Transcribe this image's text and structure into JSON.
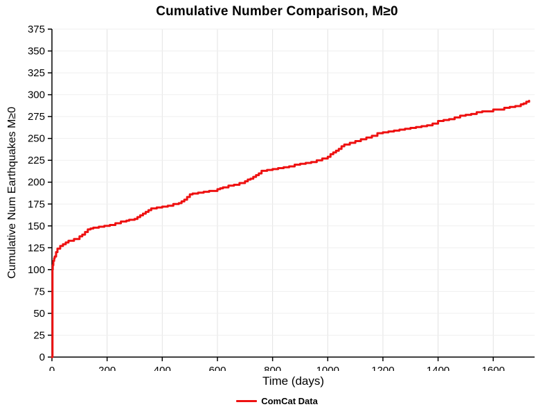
{
  "chart_data": {
    "type": "line",
    "title": "Cumulative Number Comparison, M≥0",
    "xlabel": "Time (days)",
    "ylabel": "Cumulative Num Earthquakes M≥0",
    "xlim": [
      0,
      1750
    ],
    "ylim": [
      0,
      375
    ],
    "xticks": [
      0,
      200,
      400,
      600,
      800,
      1000,
      1200,
      1400,
      1600
    ],
    "yticks": [
      0,
      25,
      50,
      75,
      100,
      125,
      150,
      175,
      200,
      225,
      250,
      275,
      300,
      325,
      350,
      375
    ],
    "grid": true,
    "legend_position": "bottom-center",
    "series": [
      {
        "name": "ComCat Data",
        "color": "#ee1111",
        "interpolation": "step",
        "points": [
          [
            0,
            0
          ],
          [
            2,
            100
          ],
          [
            3,
            105
          ],
          [
            5,
            110
          ],
          [
            8,
            113
          ],
          [
            10,
            115
          ],
          [
            15,
            120
          ],
          [
            20,
            124
          ],
          [
            30,
            127
          ],
          [
            40,
            129
          ],
          [
            50,
            131
          ],
          [
            60,
            133
          ],
          [
            80,
            135
          ],
          [
            100,
            138
          ],
          [
            110,
            140
          ],
          [
            120,
            143
          ],
          [
            130,
            146
          ],
          [
            140,
            147
          ],
          [
            150,
            148
          ],
          [
            170,
            149
          ],
          [
            190,
            150
          ],
          [
            210,
            151
          ],
          [
            230,
            153
          ],
          [
            250,
            155
          ],
          [
            270,
            156
          ],
          [
            280,
            157
          ],
          [
            300,
            158
          ],
          [
            310,
            160
          ],
          [
            320,
            162
          ],
          [
            330,
            164
          ],
          [
            340,
            166
          ],
          [
            350,
            168
          ],
          [
            360,
            170
          ],
          [
            380,
            171
          ],
          [
            400,
            172
          ],
          [
            420,
            173
          ],
          [
            440,
            175
          ],
          [
            460,
            176
          ],
          [
            470,
            178
          ],
          [
            480,
            180
          ],
          [
            490,
            183
          ],
          [
            500,
            186
          ],
          [
            510,
            187
          ],
          [
            530,
            188
          ],
          [
            550,
            189
          ],
          [
            570,
            190
          ],
          [
            590,
            190
          ],
          [
            600,
            192
          ],
          [
            610,
            193
          ],
          [
            620,
            194
          ],
          [
            640,
            196
          ],
          [
            660,
            197
          ],
          [
            680,
            199
          ],
          [
            700,
            201
          ],
          [
            710,
            203
          ],
          [
            720,
            204
          ],
          [
            730,
            206
          ],
          [
            740,
            208
          ],
          [
            750,
            210
          ],
          [
            760,
            213
          ],
          [
            780,
            214
          ],
          [
            800,
            215
          ],
          [
            820,
            216
          ],
          [
            840,
            217
          ],
          [
            860,
            218
          ],
          [
            880,
            220
          ],
          [
            900,
            221
          ],
          [
            920,
            222
          ],
          [
            940,
            223
          ],
          [
            960,
            225
          ],
          [
            980,
            227
          ],
          [
            1000,
            229
          ],
          [
            1010,
            232
          ],
          [
            1020,
            234
          ],
          [
            1030,
            236
          ],
          [
            1040,
            238
          ],
          [
            1050,
            241
          ],
          [
            1060,
            243
          ],
          [
            1080,
            245
          ],
          [
            1100,
            247
          ],
          [
            1120,
            249
          ],
          [
            1140,
            251
          ],
          [
            1160,
            253
          ],
          [
            1180,
            256
          ],
          [
            1200,
            257
          ],
          [
            1220,
            258
          ],
          [
            1240,
            259
          ],
          [
            1260,
            260
          ],
          [
            1280,
            261
          ],
          [
            1300,
            262
          ],
          [
            1320,
            263
          ],
          [
            1340,
            264
          ],
          [
            1360,
            265
          ],
          [
            1380,
            267
          ],
          [
            1400,
            270
          ],
          [
            1420,
            271
          ],
          [
            1440,
            272
          ],
          [
            1460,
            274
          ],
          [
            1480,
            276
          ],
          [
            1500,
            277
          ],
          [
            1520,
            278
          ],
          [
            1540,
            280
          ],
          [
            1560,
            281
          ],
          [
            1580,
            281
          ],
          [
            1600,
            283
          ],
          [
            1620,
            283
          ],
          [
            1640,
            285
          ],
          [
            1660,
            286
          ],
          [
            1680,
            287
          ],
          [
            1700,
            289
          ],
          [
            1710,
            290
          ],
          [
            1720,
            292
          ],
          [
            1730,
            293
          ]
        ]
      }
    ]
  },
  "legend": {
    "comcat_label": "ComCat Data"
  }
}
